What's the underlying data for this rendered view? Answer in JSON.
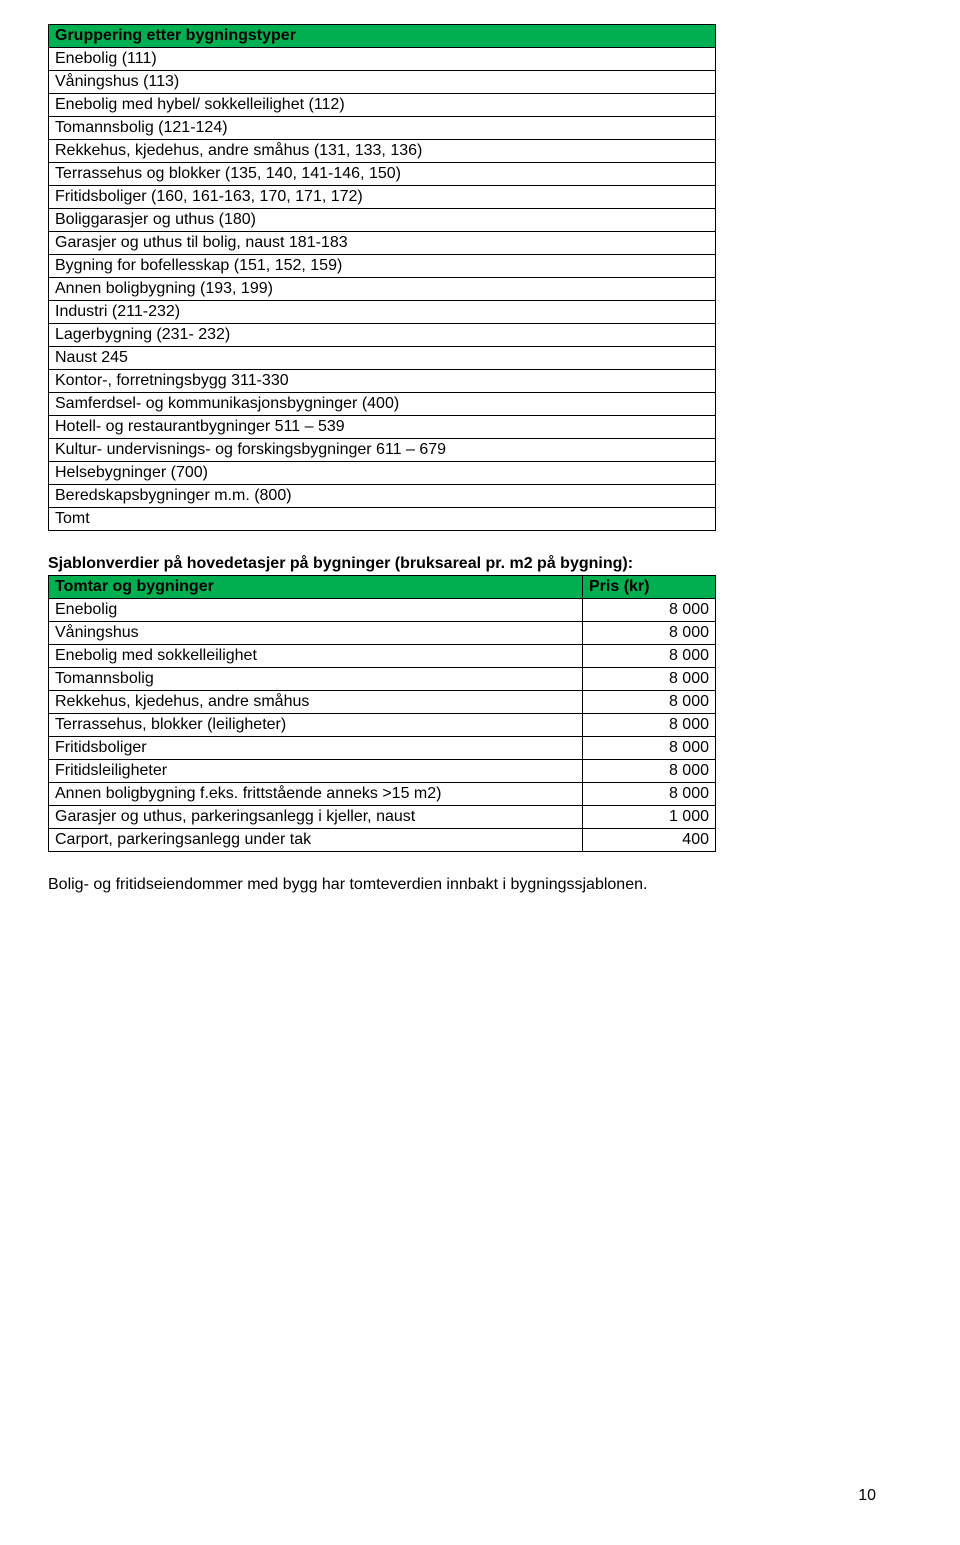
{
  "table1": {
    "header": " Gruppering  etter bygningstyper",
    "rows": [
      "Enebolig (111)",
      "Våningshus (113)",
      "Enebolig med hybel/ sokkelleilighet (112)",
      "Tomannsbolig (121-124)",
      "Rekkehus, kjedehus, andre småhus (131, 133, 136)",
      "Terrassehus og blokker (135, 140, 141-146, 150)",
      "Fritidsboliger (160, 161-163, 170, 171, 172)",
      "Boliggarasjer og uthus (180)",
      "Garasjer og uthus til bolig, naust 181-183",
      "Bygning for bofellesskap (151, 152, 159)",
      "Annen boligbygning (193, 199)",
      "Industri (211-232)",
      "Lagerbygning (231- 232)",
      "Naust 245",
      "Kontor-, forretningsbygg  311-330",
      "Samferdsel- og kommunikasjonsbygninger (400)",
      "Hotell- og restaurantbygninger  511 – 539",
      "Kultur- undervisnings- og forskingsbygninger 611 – 679",
      "Helsebygninger (700)",
      "Beredskapsbygninger m.m. (800)",
      "Tomt"
    ]
  },
  "section_heading": "Sjablonverdier på hovedetasjer på bygninger (bruksareal pr. m2 på bygning):",
  "table2": {
    "header_left": "Tomtar og bygninger",
    "header_right": "Pris (kr)",
    "rows": [
      {
        "label": "Enebolig",
        "price": "8 000"
      },
      {
        "label": "Våningshus",
        "price": "8 000"
      },
      {
        "label": "Enebolig med sokkelleilighet",
        "price": "8 000"
      },
      {
        "label": "Tomannsbolig",
        "price": "8 000"
      },
      {
        "label": "Rekkehus, kjedehus, andre småhus",
        "price": "8 000"
      },
      {
        "label": "Terrassehus, blokker (leiligheter)",
        "price": "8 000"
      },
      {
        "label": "Fritidsboliger",
        "price": "8 000"
      },
      {
        "label": "Fritidsleiligheter",
        "price": "8 000"
      },
      {
        "label": "Annen boligbygning f.eks. frittstående anneks >15 m2)",
        "price": "8 000"
      },
      {
        "label": "Garasjer og uthus, parkeringsanlegg i kjeller, naust",
        "price": "1 000"
      },
      {
        "label": "Carport, parkeringsanlegg under tak",
        "price": "400"
      }
    ]
  },
  "footer_note": "Bolig- og fritidseiendommer med bygg har tomteverdien innbakt i bygningssjablonen.",
  "page_number": "10"
}
